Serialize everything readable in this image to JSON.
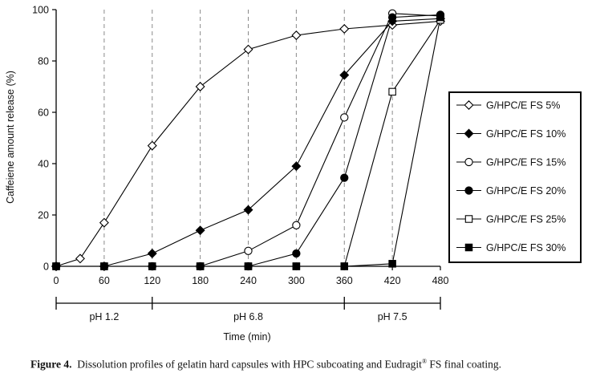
{
  "chart_data": {
    "type": "line",
    "title": "",
    "xlabel": "Time (min)",
    "ylabel": "Caffeiene amount release (%)",
    "xlim": [
      0,
      480
    ],
    "ylim": [
      0,
      100
    ],
    "xticks": [
      0,
      60,
      120,
      180,
      240,
      300,
      360,
      420,
      480
    ],
    "yticks": [
      0,
      20,
      40,
      60,
      80,
      100
    ],
    "vertical_gridlines": [
      60,
      120,
      180,
      240,
      300,
      360,
      420
    ],
    "grid": "dashed vertical",
    "legend_position": "right",
    "ph_regions": [
      {
        "label": "pH 1.2",
        "start": 0,
        "end": 120
      },
      {
        "label": "pH 6.8",
        "start": 120,
        "end": 360
      },
      {
        "label": "pH 7.5",
        "start": 360,
        "end": 480
      }
    ],
    "series": [
      {
        "name": "G/HPC/E FS 5%",
        "marker": "open-diamond",
        "x": [
          0,
          30,
          60,
          120,
          180,
          240,
          300,
          360,
          420,
          480
        ],
        "y": [
          0,
          3,
          17,
          47,
          70,
          84.5,
          90,
          92.5,
          94,
          95.5
        ]
      },
      {
        "name": "G/HPC/E FS 10%",
        "marker": "filled-diamond",
        "x": [
          0,
          60,
          120,
          180,
          240,
          300,
          360,
          420,
          480
        ],
        "y": [
          0,
          0,
          5,
          14,
          22,
          39,
          74.5,
          95.5,
          96.5
        ]
      },
      {
        "name": "G/HPC/E FS 15%",
        "marker": "open-circle",
        "x": [
          0,
          60,
          120,
          180,
          240,
          300,
          360,
          420,
          480
        ],
        "y": [
          0,
          0,
          0,
          0,
          6,
          16,
          58,
          98.5,
          97.5
        ]
      },
      {
        "name": "G/HPC/E FS 20%",
        "marker": "filled-circle",
        "x": [
          0,
          60,
          120,
          180,
          240,
          300,
          360,
          420,
          480
        ],
        "y": [
          0,
          0,
          0,
          0,
          0,
          5,
          34.5,
          97,
          98
        ]
      },
      {
        "name": "G/HPC/E FS 25%",
        "marker": "open-square",
        "x": [
          0,
          60,
          120,
          180,
          240,
          300,
          360,
          420,
          480
        ],
        "y": [
          0,
          0,
          0,
          0,
          0,
          0,
          0,
          68,
          96
        ]
      },
      {
        "name": "G/HPC/E FS 30%",
        "marker": "filled-square",
        "x": [
          0,
          60,
          120,
          180,
          240,
          300,
          360,
          420,
          480
        ],
        "y": [
          0,
          0,
          0,
          0,
          0,
          0,
          0,
          1,
          97
        ]
      }
    ]
  },
  "caption": {
    "prefix": "Figure 4.",
    "text_before_mark": "Dissolution profiles of gelatin hard capsules with HPC subcoating and Eudragit",
    "mark": "®",
    "text_after_mark": " FS final coating."
  }
}
